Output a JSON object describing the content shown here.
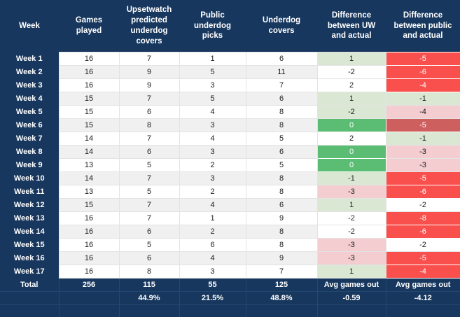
{
  "table": {
    "columns": [
      {
        "label": "Week"
      },
      {
        "label": "Games played"
      },
      {
        "label": "Upsetwatch predicted underdog covers"
      },
      {
        "label": "Public underdog picks"
      },
      {
        "label": "Underdog covers"
      },
      {
        "label": "Difference between UW and actual"
      },
      {
        "label": "Difference between public and actual"
      }
    ],
    "rows": [
      {
        "week": "Week 1",
        "games": "16",
        "uw": "7",
        "pub": "1",
        "covers": "6",
        "diff_uw": "1",
        "diff_pub": "-5",
        "uw_style": "g1",
        "pub_style": "r2"
      },
      {
        "week": "Week 2",
        "games": "16",
        "uw": "9",
        "pub": "5",
        "covers": "11",
        "diff_uw": "-2",
        "diff_pub": "-6",
        "uw_style": "w",
        "pub_style": "r2"
      },
      {
        "week": "Week 3",
        "games": "16",
        "uw": "9",
        "pub": "3",
        "covers": "7",
        "diff_uw": "2",
        "diff_pub": "-4",
        "uw_style": "w",
        "pub_style": "r2"
      },
      {
        "week": "Week 4",
        "games": "15",
        "uw": "7",
        "pub": "5",
        "covers": "6",
        "diff_uw": "1",
        "diff_pub": "-1",
        "uw_style": "g1",
        "pub_style": "g1"
      },
      {
        "week": "Week 5",
        "games": "15",
        "uw": "6",
        "pub": "4",
        "covers": "8",
        "diff_uw": "-2",
        "diff_pub": "-4",
        "uw_style": "g1",
        "pub_style": "r1"
      },
      {
        "week": "Week 6",
        "games": "15",
        "uw": "8",
        "pub": "3",
        "covers": "8",
        "diff_uw": "0",
        "diff_pub": "-5",
        "uw_style": "g2",
        "pub_style": "r3"
      },
      {
        "week": "Week 7",
        "games": "14",
        "uw": "7",
        "pub": "4",
        "covers": "5",
        "diff_uw": "2",
        "diff_pub": "-1",
        "uw_style": "w",
        "pub_style": "g1"
      },
      {
        "week": "Week 8",
        "games": "14",
        "uw": "6",
        "pub": "3",
        "covers": "6",
        "diff_uw": "0",
        "diff_pub": "-3",
        "uw_style": "g2",
        "pub_style": "r1"
      },
      {
        "week": "Week 9",
        "games": "13",
        "uw": "5",
        "pub": "2",
        "covers": "5",
        "diff_uw": "0",
        "diff_pub": "-3",
        "uw_style": "g2",
        "pub_style": "r1"
      },
      {
        "week": "Week 10",
        "games": "14",
        "uw": "7",
        "pub": "3",
        "covers": "8",
        "diff_uw": "-1",
        "diff_pub": "-5",
        "uw_style": "g1",
        "pub_style": "r2"
      },
      {
        "week": "Week 11",
        "games": "13",
        "uw": "5",
        "pub": "2",
        "covers": "8",
        "diff_uw": "-3",
        "diff_pub": "-6",
        "uw_style": "r1",
        "pub_style": "r2"
      },
      {
        "week": "Week 12",
        "games": "15",
        "uw": "7",
        "pub": "4",
        "covers": "6",
        "diff_uw": "1",
        "diff_pub": "-2",
        "uw_style": "g1",
        "pub_style": "w"
      },
      {
        "week": "Week 13",
        "games": "16",
        "uw": "7",
        "pub": "1",
        "covers": "9",
        "diff_uw": "-2",
        "diff_pub": "-8",
        "uw_style": "w",
        "pub_style": "r2"
      },
      {
        "week": "Week 14",
        "games": "16",
        "uw": "6",
        "pub": "2",
        "covers": "8",
        "diff_uw": "-2",
        "diff_pub": "-6",
        "uw_style": "w",
        "pub_style": "r2"
      },
      {
        "week": "Week 15",
        "games": "16",
        "uw": "5",
        "pub": "6",
        "covers": "8",
        "diff_uw": "-3",
        "diff_pub": "-2",
        "uw_style": "r1",
        "pub_style": "w"
      },
      {
        "week": "Week 16",
        "games": "16",
        "uw": "6",
        "pub": "4",
        "covers": "9",
        "diff_uw": "-3",
        "diff_pub": "-5",
        "uw_style": "r1",
        "pub_style": "r2"
      },
      {
        "week": "Week 17",
        "games": "16",
        "uw": "8",
        "pub": "3",
        "covers": "7",
        "diff_uw": "1",
        "diff_pub": "-4",
        "uw_style": "g1",
        "pub_style": "r2"
      }
    ],
    "total": {
      "label": "Total",
      "games": "256",
      "uw": "115",
      "pub": "55",
      "covers": "125",
      "diff_uw": "Avg games out",
      "diff_pub": "Avg games out"
    },
    "summary": {
      "games": "",
      "uw_pct": "44.9%",
      "pub_pct": "21.5%",
      "covers_pct": "48.8%",
      "avg_uw": "-0.59",
      "avg_pub": "-4.12"
    }
  },
  "colors": {
    "header_navy": "#17375e",
    "row_stripe": "#f0f0f0",
    "green_light": "#dae8d3",
    "green_strong": "#5bbc74",
    "red_light": "#f3cdcf",
    "red_strong": "#f9504d",
    "red_medium": "#cd5f5f"
  }
}
